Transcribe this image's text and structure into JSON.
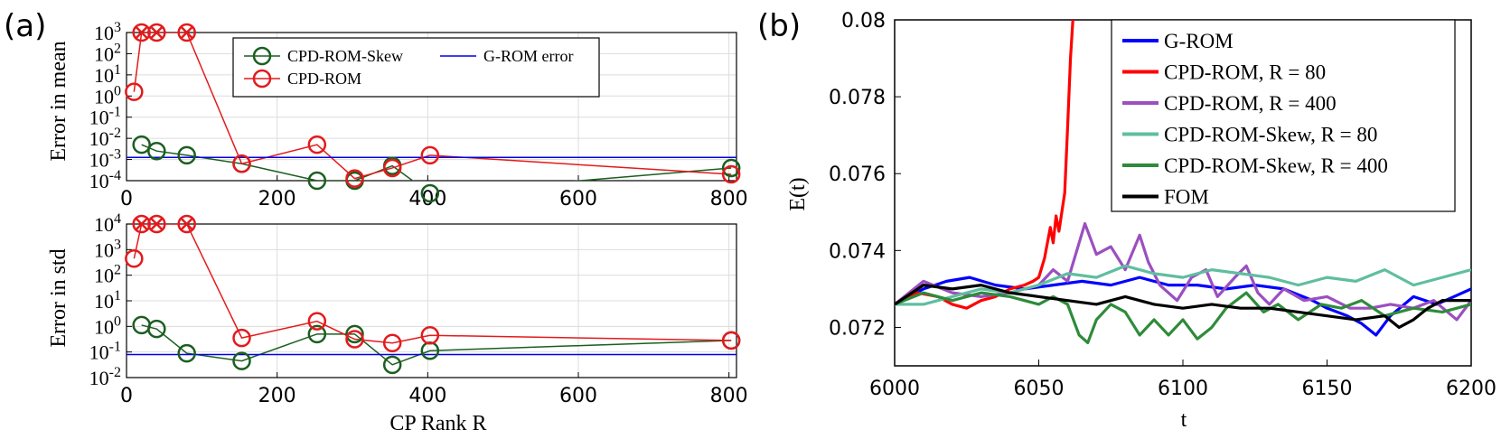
{
  "panel_labels": {
    "a": "(a)",
    "b": "(b)"
  },
  "colors": {
    "cpd_rom_skew": "#1b5e20",
    "cpd_rom": "#e41a1c",
    "g_rom_line": "#0000ee"
  },
  "chart_data": [
    {
      "id": "a_top",
      "type": "line",
      "ylabel": "Error in mean",
      "xlabel": "",
      "xlim": [
        0,
        810
      ],
      "ylim_log10": [
        -4,
        3
      ],
      "xticks": [
        "0",
        "200",
        "400",
        "600",
        "800"
      ],
      "yticks": [
        "10 3",
        "10 2",
        "10 1",
        "10 0",
        "10 -1",
        "10 -2",
        "10 -3",
        "10 -4"
      ],
      "series": [
        {
          "name": "CPD-ROM-Skew",
          "x": [
            20,
            40,
            80,
            153,
            253,
            303,
            353,
            403,
            803
          ],
          "log10_y": [
            -2.3,
            -2.6,
            -2.8,
            -3.2,
            -4.0,
            -4.0,
            -3.3,
            -4.6,
            -3.4
          ]
        },
        {
          "name": "CPD-ROM",
          "x": [
            10,
            20,
            40,
            80,
            153,
            253,
            303,
            353,
            403,
            803
          ],
          "log10_y": [
            0.2,
            3,
            3,
            3,
            -3.2,
            -2.3,
            -3.9,
            -3.4,
            -2.8,
            -3.7
          ]
        },
        {
          "name": "G-ROM error",
          "x": [
            0,
            810
          ],
          "log10_y": [
            -2.9,
            -2.9
          ]
        }
      ],
      "legend": [
        "CPD-ROM-Skew",
        "CPD-ROM",
        "G-ROM error"
      ]
    },
    {
      "id": "a_bottom",
      "type": "line",
      "ylabel": "Error in std",
      "xlabel": "CP Rank R",
      "xlim": [
        0,
        810
      ],
      "ylim_log10": [
        -2,
        4
      ],
      "xticks": [
        "0",
        "200",
        "400",
        "600",
        "800"
      ],
      "yticks": [
        "10 4",
        "10 3",
        "10 2",
        "10 1",
        "10 0",
        "10 -1",
        "10 -2"
      ],
      "series": [
        {
          "name": "CPD-ROM-Skew",
          "x": [
            20,
            40,
            80,
            153,
            253,
            303,
            353,
            403,
            803
          ],
          "log10_y": [
            0.05,
            -0.1,
            -1.05,
            -1.35,
            -0.3,
            -0.3,
            -1.5,
            -0.95,
            -0.55
          ]
        },
        {
          "name": "CPD-ROM",
          "x": [
            10,
            20,
            40,
            80,
            153,
            253,
            303,
            353,
            403,
            803
          ],
          "log10_y": [
            2.65,
            4,
            4,
            4,
            -0.45,
            0.2,
            -0.5,
            -0.65,
            -0.35,
            -0.55
          ]
        },
        {
          "name": "G-ROM error",
          "x": [
            0,
            810
          ],
          "log10_y": [
            -1.1,
            -1.1
          ]
        }
      ]
    },
    {
      "id": "b",
      "type": "line",
      "ylabel": "E(t)",
      "xlabel": "t",
      "xlim": [
        6000,
        6200
      ],
      "ylim": [
        0.071,
        0.08
      ],
      "xticks": [
        "6000",
        "6050",
        "6100",
        "6150",
        "6200"
      ],
      "yticks": [
        "0.08",
        "0.078",
        "0.076",
        "0.074",
        "0.072"
      ],
      "series": [
        {
          "name": "G-ROM",
          "color": "#0000ff",
          "points": [
            [
              6000,
              0.0726
            ],
            [
              6010,
              0.073
            ],
            [
              6018,
              0.0732
            ],
            [
              6026,
              0.0733
            ],
            [
              6035,
              0.0731
            ],
            [
              6045,
              0.073
            ],
            [
              6055,
              0.0731
            ],
            [
              6065,
              0.0732
            ],
            [
              6075,
              0.0731
            ],
            [
              6085,
              0.0733
            ],
            [
              6095,
              0.0731
            ],
            [
              6105,
              0.0731
            ],
            [
              6115,
              0.073
            ],
            [
              6125,
              0.0731
            ],
            [
              6135,
              0.073
            ],
            [
              6145,
              0.0727
            ],
            [
              6150,
              0.0725
            ],
            [
              6157,
              0.0723
            ],
            [
              6162,
              0.0721
            ],
            [
              6167,
              0.0718
            ],
            [
              6172,
              0.0723
            ],
            [
              6180,
              0.0728
            ],
            [
              6188,
              0.0726
            ],
            [
              6194,
              0.0728
            ],
            [
              6200,
              0.073
            ]
          ]
        },
        {
          "name": "CPD-ROM, R = 80",
          "color": "#ff0000",
          "points": [
            [
              6000,
              0.0726
            ],
            [
              6008,
              0.0729
            ],
            [
              6015,
              0.0728
            ],
            [
              6020,
              0.0726
            ],
            [
              6025,
              0.0725
            ],
            [
              6030,
              0.0727
            ],
            [
              6035,
              0.0728
            ],
            [
              6040,
              0.073
            ],
            [
              6045,
              0.0731
            ],
            [
              6048,
              0.0732
            ],
            [
              6050,
              0.0733
            ],
            [
              6052,
              0.0738
            ],
            [
              6054,
              0.0746
            ],
            [
              6055,
              0.0742
            ],
            [
              6056,
              0.0749
            ],
            [
              6057,
              0.0745
            ],
            [
              6059,
              0.0755
            ],
            [
              6060,
              0.0772
            ],
            [
              6061,
              0.079
            ],
            [
              6062,
              0.0802
            ]
          ]
        },
        {
          "name": "CPD-ROM, R = 400",
          "color": "#9b4fc0",
          "points": [
            [
              6000,
              0.0726
            ],
            [
              6010,
              0.0732
            ],
            [
              6020,
              0.0729
            ],
            [
              6030,
              0.0728
            ],
            [
              6040,
              0.0729
            ],
            [
              6050,
              0.0731
            ],
            [
              6055,
              0.0735
            ],
            [
              6060,
              0.0732
            ],
            [
              6064,
              0.0742
            ],
            [
              6066,
              0.0747
            ],
            [
              6070,
              0.0739
            ],
            [
              6075,
              0.0741
            ],
            [
              6080,
              0.0735
            ],
            [
              6085,
              0.0744
            ],
            [
              6088,
              0.0737
            ],
            [
              6092,
              0.0731
            ],
            [
              6098,
              0.0727
            ],
            [
              6103,
              0.0733
            ],
            [
              6108,
              0.0735
            ],
            [
              6112,
              0.0728
            ],
            [
              6118,
              0.0733
            ],
            [
              6122,
              0.0736
            ],
            [
              6126,
              0.0729
            ],
            [
              6130,
              0.0726
            ],
            [
              6135,
              0.073
            ],
            [
              6142,
              0.0727
            ],
            [
              6150,
              0.0728
            ],
            [
              6158,
              0.0725
            ],
            [
              6165,
              0.0725
            ],
            [
              6172,
              0.0726
            ],
            [
              6180,
              0.0725
            ],
            [
              6187,
              0.0727
            ],
            [
              6195,
              0.0722
            ],
            [
              6200,
              0.0727
            ]
          ]
        },
        {
          "name": "CPD-ROM-Skew, R = 80",
          "color": "#5fbea0",
          "points": [
            [
              6000,
              0.0726
            ],
            [
              6010,
              0.0726
            ],
            [
              6020,
              0.0728
            ],
            [
              6030,
              0.073
            ],
            [
              6040,
              0.0729
            ],
            [
              6050,
              0.0731
            ],
            [
              6060,
              0.0734
            ],
            [
              6070,
              0.0733
            ],
            [
              6080,
              0.0736
            ],
            [
              6090,
              0.0734
            ],
            [
              6100,
              0.0733
            ],
            [
              6110,
              0.0735
            ],
            [
              6120,
              0.0734
            ],
            [
              6130,
              0.0733
            ],
            [
              6140,
              0.0731
            ],
            [
              6150,
              0.0733
            ],
            [
              6160,
              0.0732
            ],
            [
              6170,
              0.0735
            ],
            [
              6180,
              0.0731
            ],
            [
              6190,
              0.0733
            ],
            [
              6200,
              0.0735
            ]
          ]
        },
        {
          "name": "CPD-ROM-Skew, R = 400",
          "color": "#2e8b3a",
          "points": [
            [
              6000,
              0.0726
            ],
            [
              6010,
              0.0729
            ],
            [
              6020,
              0.0727
            ],
            [
              6030,
              0.0729
            ],
            [
              6040,
              0.0728
            ],
            [
              6050,
              0.0726
            ],
            [
              6055,
              0.0728
            ],
            [
              6060,
              0.0726
            ],
            [
              6064,
              0.0718
            ],
            [
              6067,
              0.0716
            ],
            [
              6070,
              0.0722
            ],
            [
              6075,
              0.0726
            ],
            [
              6080,
              0.0724
            ],
            [
              6085,
              0.0718
            ],
            [
              6090,
              0.0722
            ],
            [
              6095,
              0.0718
            ],
            [
              6100,
              0.0722
            ],
            [
              6105,
              0.0717
            ],
            [
              6110,
              0.072
            ],
            [
              6115,
              0.0725
            ],
            [
              6122,
              0.0729
            ],
            [
              6128,
              0.0724
            ],
            [
              6133,
              0.0726
            ],
            [
              6140,
              0.0722
            ],
            [
              6148,
              0.0726
            ],
            [
              6155,
              0.0725
            ],
            [
              6162,
              0.0727
            ],
            [
              6170,
              0.0723
            ],
            [
              6180,
              0.0725
            ],
            [
              6190,
              0.0724
            ],
            [
              6200,
              0.0726
            ]
          ]
        },
        {
          "name": "FOM",
          "color": "#000000",
          "points": [
            [
              6000,
              0.0726
            ],
            [
              6010,
              0.0731
            ],
            [
              6020,
              0.073
            ],
            [
              6030,
              0.0731
            ],
            [
              6040,
              0.0729
            ],
            [
              6050,
              0.0728
            ],
            [
              6060,
              0.0727
            ],
            [
              6070,
              0.0726
            ],
            [
              6080,
              0.0728
            ],
            [
              6090,
              0.0726
            ],
            [
              6100,
              0.0725
            ],
            [
              6110,
              0.0726
            ],
            [
              6120,
              0.0725
            ],
            [
              6130,
              0.0725
            ],
            [
              6140,
              0.0724
            ],
            [
              6150,
              0.0723
            ],
            [
              6160,
              0.0722
            ],
            [
              6170,
              0.0723
            ],
            [
              6175,
              0.072
            ],
            [
              6180,
              0.0722
            ],
            [
              6185,
              0.0725
            ],
            [
              6190,
              0.0727
            ],
            [
              6200,
              0.0727
            ]
          ]
        }
      ],
      "legend": [
        "G-ROM",
        "CPD-ROM, R = 80",
        "CPD-ROM, R = 400",
        "CPD-ROM-Skew, R = 80",
        "CPD-ROM-Skew, R = 400",
        "FOM"
      ]
    }
  ]
}
